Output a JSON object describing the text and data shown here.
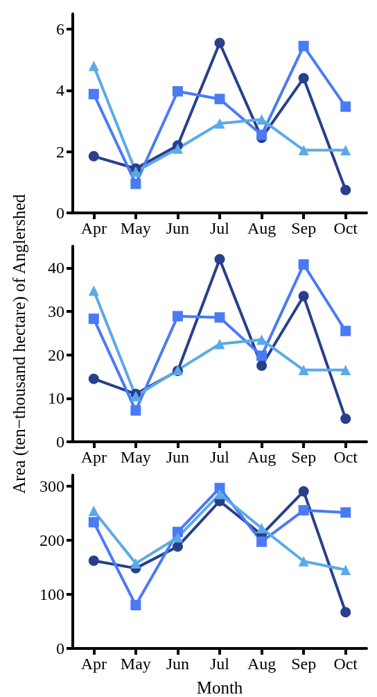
{
  "chart_data": [
    {
      "type": "line",
      "categories": [
        "Apr",
        "May",
        "Jun",
        "Jul",
        "Aug",
        "Sep",
        "Oct"
      ],
      "ylim": [
        0,
        6.5
      ],
      "yticks": [
        0,
        2,
        4,
        6
      ],
      "grid": false,
      "series": [
        {
          "color": "#283f8c",
          "marker": "circle",
          "values": [
            1.85,
            1.45,
            2.2,
            5.55,
            2.45,
            4.4,
            0.75
          ]
        },
        {
          "color": "#4a7bf5",
          "marker": "square",
          "values": [
            3.88,
            0.95,
            3.97,
            3.72,
            2.55,
            5.45,
            3.47
          ]
        },
        {
          "color": "#5aaae8",
          "marker": "triangle",
          "values": [
            4.8,
            1.35,
            2.1,
            2.92,
            3.05,
            2.05,
            2.05
          ]
        }
      ]
    },
    {
      "type": "line",
      "categories": [
        "Apr",
        "May",
        "Jun",
        "Jul",
        "Aug",
        "Sep",
        "Oct"
      ],
      "ylabel": "Area (ten−thousand hectare) of Anglershed",
      "ylim": [
        0,
        45
      ],
      "yticks": [
        0,
        10,
        20,
        30,
        40
      ],
      "grid": false,
      "series": [
        {
          "color": "#283f8c",
          "marker": "circle",
          "values": [
            14.5,
            11,
            16.3,
            42,
            17.5,
            33.5,
            5.3
          ]
        },
        {
          "color": "#4a7bf5",
          "marker": "square",
          "values": [
            28.3,
            7.2,
            28.9,
            28.6,
            19.8,
            40.8,
            25.5
          ]
        },
        {
          "color": "#5aaae8",
          "marker": "triangle",
          "values": [
            34.8,
            10.5,
            16.5,
            22.5,
            23.5,
            16.5,
            16.5
          ]
        }
      ]
    },
    {
      "type": "line",
      "categories": [
        "Apr",
        "May",
        "Jun",
        "Jul",
        "Aug",
        "Sep",
        "Oct"
      ],
      "xlabel": "Month",
      "ylim": [
        0,
        320
      ],
      "yticks": [
        0,
        100,
        200,
        300
      ],
      "grid": false,
      "series": [
        {
          "color": "#283f8c",
          "marker": "circle",
          "values": [
            162,
            148,
            188,
            272,
            210,
            290,
            67
          ]
        },
        {
          "color": "#4a7bf5",
          "marker": "square",
          "values": [
            233,
            80,
            215,
            296,
            197,
            255,
            251
          ]
        },
        {
          "color": "#5aaae8",
          "marker": "triangle",
          "values": [
            254,
            157,
            205,
            285,
            222,
            161,
            145
          ]
        }
      ]
    }
  ]
}
